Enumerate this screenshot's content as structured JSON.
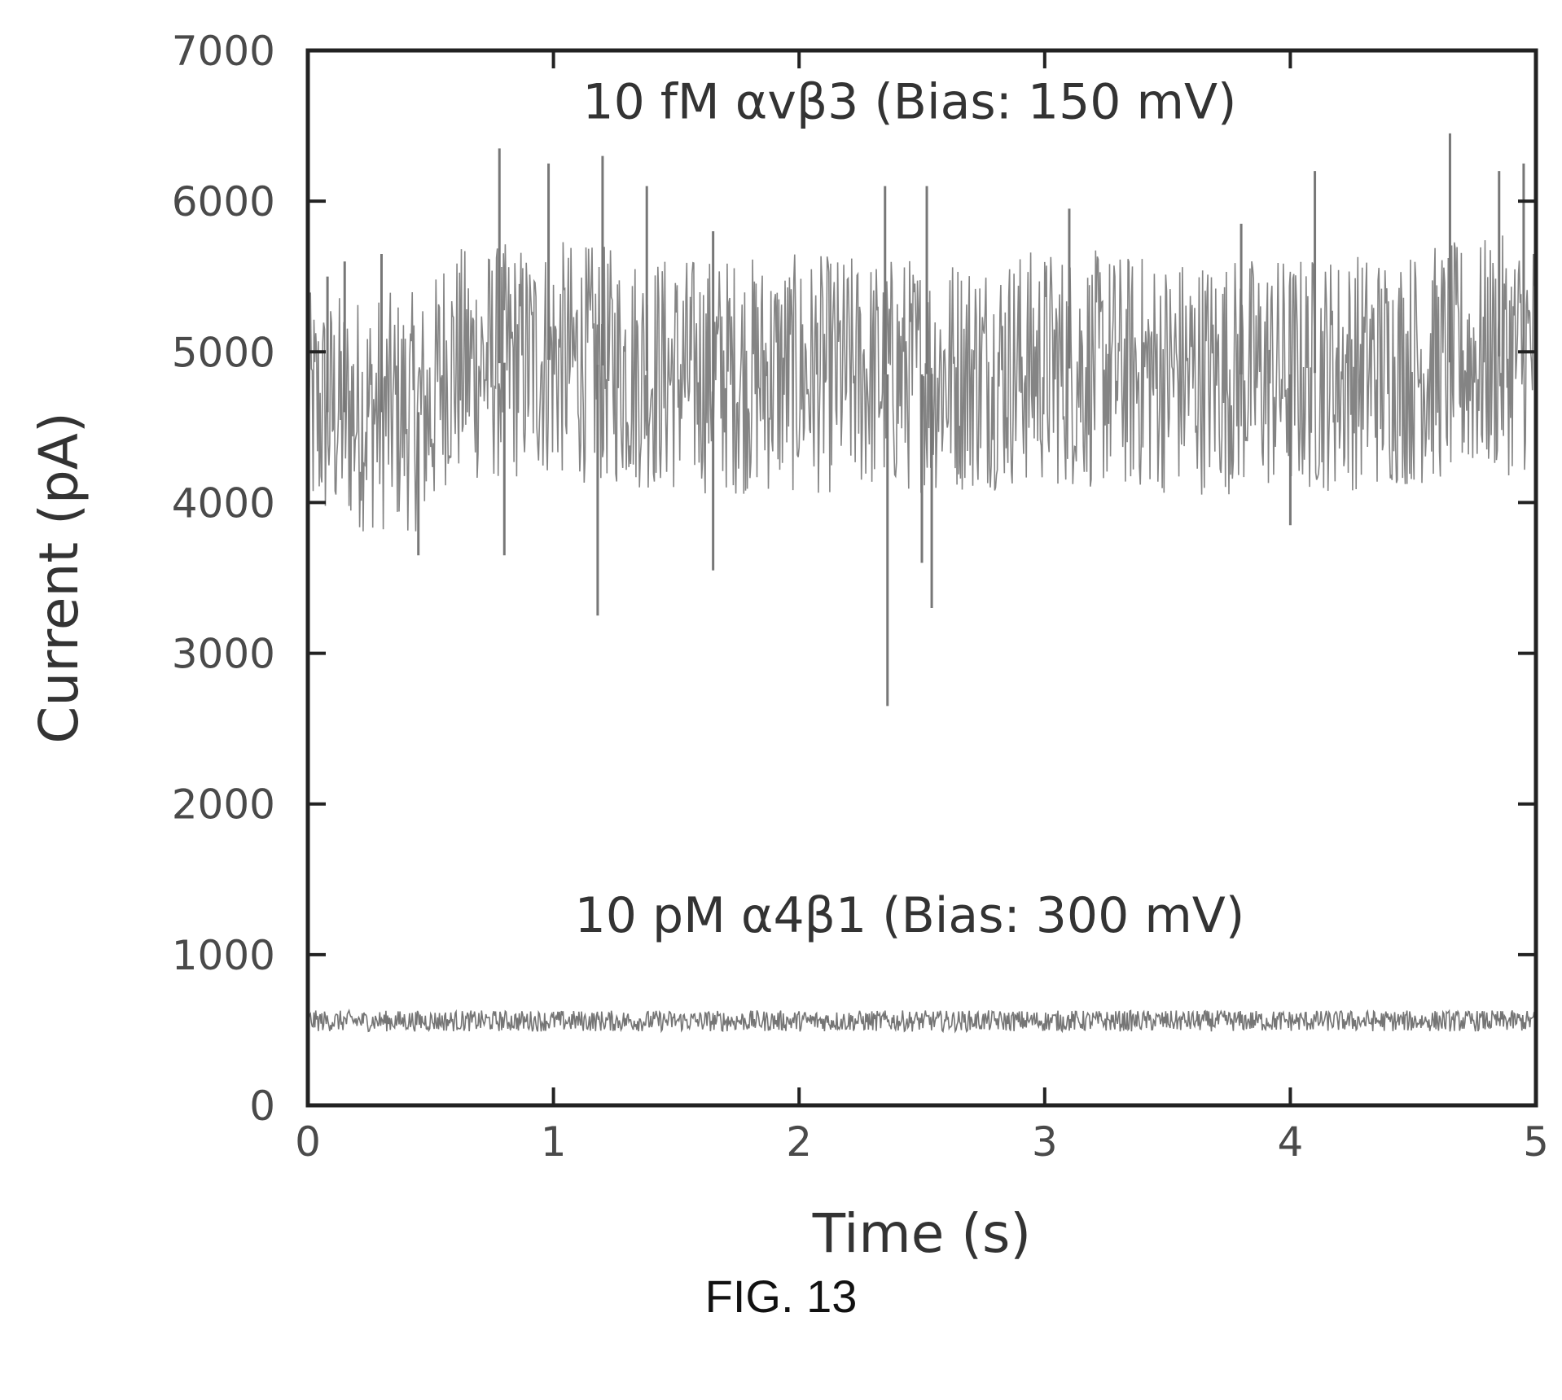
{
  "figure_caption": "FIG. 13",
  "chart_data": {
    "type": "line",
    "xlabel": "Time (s)",
    "ylabel": "Current (pA)",
    "xlim": [
      0,
      5
    ],
    "ylim": [
      0,
      7000
    ],
    "xticks": [
      "0",
      "1",
      "2",
      "3",
      "4",
      "5"
    ],
    "yticks": [
      "0",
      "1000",
      "2000",
      "3000",
      "4000",
      "5000",
      "6000",
      "7000"
    ],
    "grid": false,
    "annotations": [
      {
        "text": "10 fM αvβ3 (Bias: 150 mV)",
        "x": 2.45,
        "y": 6550
      },
      {
        "text": "10 pM α4β1 (Bias: 300 mV)",
        "x": 2.45,
        "y": 1150
      }
    ],
    "series": [
      {
        "color": "#777777",
        "baseline": 4850,
        "noise_band": [
          4000,
          5600
        ],
        "x": [
          0,
          0.5,
          0.55,
          1,
          1.5,
          2,
          2.5,
          3,
          3.5,
          4,
          4.5,
          5
        ],
        "y": [
          4600,
          4600,
          4900,
          4950,
          4850,
          4850,
          4850,
          4900,
          4850,
          4850,
          4900,
          5000
        ],
        "spikes": [
          {
            "x": 0.08,
            "y": 5500
          },
          {
            "x": 0.15,
            "y": 5600
          },
          {
            "x": 0.3,
            "y": 5650
          },
          {
            "x": 0.78,
            "y": 6350
          },
          {
            "x": 0.98,
            "y": 6250
          },
          {
            "x": 1.2,
            "y": 6300
          },
          {
            "x": 1.38,
            "y": 6100
          },
          {
            "x": 1.65,
            "y": 5800
          },
          {
            "x": 2.35,
            "y": 6100
          },
          {
            "x": 2.52,
            "y": 6100
          },
          {
            "x": 3.1,
            "y": 5950
          },
          {
            "x": 3.8,
            "y": 5850
          },
          {
            "x": 4.1,
            "y": 6200
          },
          {
            "x": 4.65,
            "y": 6450
          },
          {
            "x": 4.85,
            "y": 6200
          },
          {
            "x": 4.95,
            "y": 6250
          },
          {
            "x": 0.45,
            "y": 3650
          },
          {
            "x": 0.8,
            "y": 3650
          },
          {
            "x": 1.18,
            "y": 3250
          },
          {
            "x": 1.65,
            "y": 3550
          },
          {
            "x": 2.36,
            "y": 2650
          },
          {
            "x": 2.5,
            "y": 3600
          },
          {
            "x": 2.54,
            "y": 3300
          },
          {
            "x": 4.0,
            "y": 3850
          }
        ]
      },
      {
        "color": "#666666",
        "baseline": 560,
        "noise_band": [
          500,
          640
        ],
        "x": [
          0,
          1,
          2,
          3,
          4,
          5
        ],
        "y": [
          560,
          560,
          560,
          560,
          560,
          560
        ]
      }
    ]
  }
}
